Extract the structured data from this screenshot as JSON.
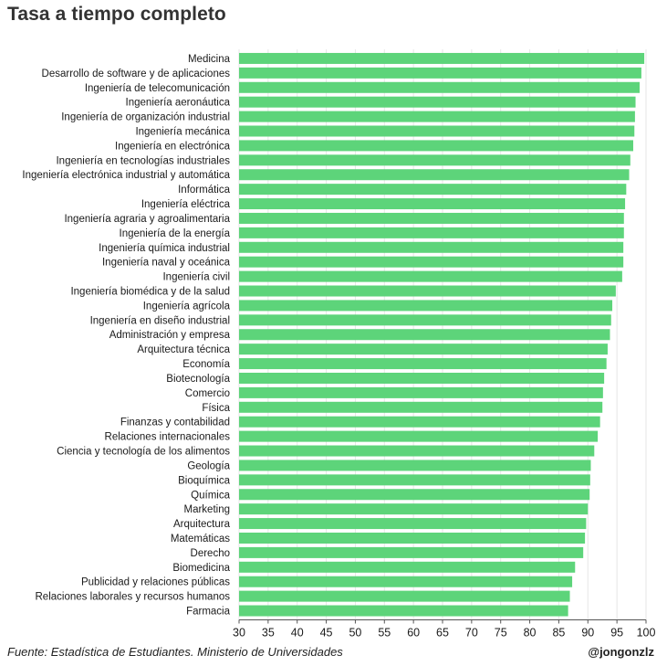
{
  "title": "Tasa a tiempo completo",
  "source": "Fuente: Estadística de Estudiantes. Ministerio de Universidades",
  "handle": "@jongonzlz",
  "colors": {
    "bar": "#5dd47a",
    "grid": "#e6e6e6",
    "axis": "#555555"
  },
  "chart_data": {
    "type": "bar",
    "orientation": "horizontal",
    "title": "Tasa a tiempo completo",
    "xlim": [
      30,
      100
    ],
    "xticks": [
      "30",
      "35",
      "40",
      "45",
      "50",
      "55",
      "60",
      "65",
      "70",
      "75",
      "80",
      "85",
      "90",
      "95",
      "100"
    ],
    "grid": true,
    "categories": [
      "Medicina",
      "Desarrollo de software y de aplicaciones",
      "Ingeniería de telecomunicación",
      "Ingeniería aeronáutica",
      "Ingeniería de organización industrial",
      "Ingeniería mecánica",
      "Ingeniería en electrónica",
      "Ingeniería en tecnologías industriales",
      "Ingeniería electrónica industrial y automática",
      "Informática",
      "Ingeniería eléctrica",
      "Ingeniería agraria y agroalimentaria",
      "Ingeniería de la energía",
      "Ingeniería química industrial",
      "Ingeniería naval y oceánica",
      "Ingeniería civil",
      "Ingeniería biomédica y de la salud",
      "Ingeniería agrícola",
      "Ingeniería en diseño industrial",
      "Administración y empresa",
      "Arquitectura técnica",
      "Economía",
      "Biotecnología",
      "Comercio",
      "Física",
      "Finanzas y contabilidad",
      "Relaciones internacionales",
      "Ciencia y tecnología de los alimentos",
      "Geología",
      "Bioquímica",
      "Química",
      "Marketing",
      "Arquitectura",
      "Matemáticas",
      "Derecho",
      "Biomedicina",
      "Publicidad y relaciones públicas",
      "Relaciones laborales y recursos humanos",
      "Farmacia"
    ],
    "values": [
      99.7,
      99.2,
      98.9,
      98.2,
      98.1,
      98.0,
      97.8,
      97.3,
      97.1,
      96.6,
      96.4,
      96.2,
      96.2,
      96.1,
      96.1,
      95.9,
      94.8,
      94.2,
      94.0,
      93.8,
      93.4,
      93.2,
      92.8,
      92.6,
      92.5,
      92.1,
      91.7,
      91.1,
      90.5,
      90.4,
      90.3,
      90.0,
      89.7,
      89.5,
      89.2,
      87.8,
      87.3,
      86.9,
      86.6
    ]
  }
}
